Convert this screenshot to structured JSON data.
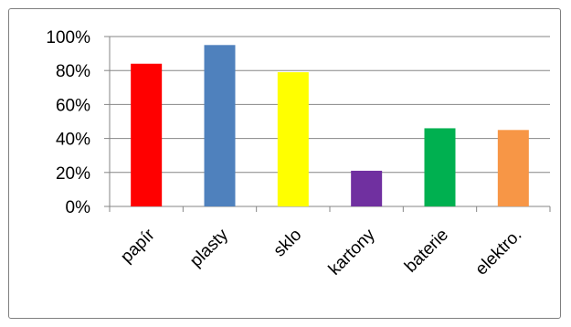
{
  "chart_data": {
    "type": "bar",
    "categories": [
      "papír",
      "plasty",
      "sklo",
      "kartony",
      "baterie",
      "elektro."
    ],
    "values": [
      84,
      95,
      79,
      21,
      46,
      45
    ],
    "colors": [
      "#ff0000",
      "#4f81bd",
      "#ffff00",
      "#7030a0",
      "#00b050",
      "#f79646"
    ],
    "ylim": [
      0,
      100
    ],
    "y_ticks": [
      "0%",
      "20%",
      "40%",
      "60%",
      "80%",
      "100%"
    ],
    "y_tick_values": [
      0,
      20,
      40,
      60,
      80,
      100
    ],
    "grid": true,
    "legend": "none"
  }
}
